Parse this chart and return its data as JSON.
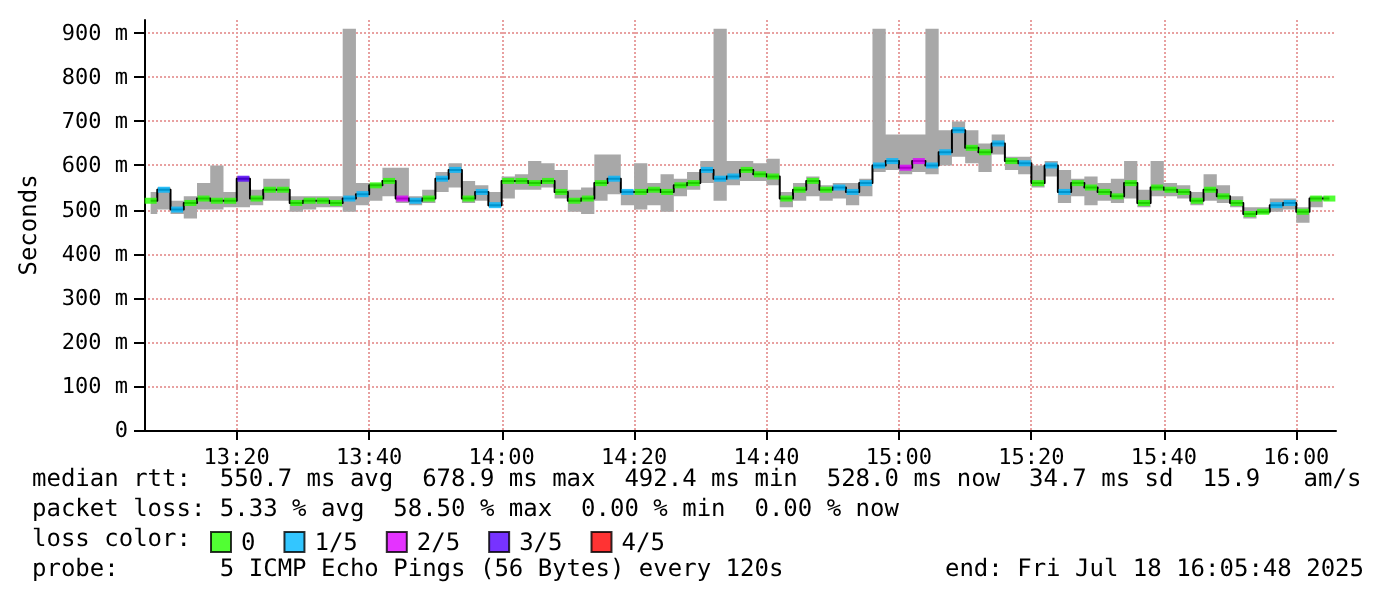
{
  "chart_data": {
    "type": "step",
    "ylabel": "Seconds",
    "x": [
      13.1167,
      13.15,
      13.1833,
      13.2167,
      13.25,
      13.2833,
      13.3167,
      13.35,
      13.3833,
      13.4167,
      13.45,
      13.4833,
      13.5167,
      13.55,
      13.5833,
      13.6167,
      13.65,
      13.6833,
      13.7167,
      13.75,
      13.7833,
      13.8167,
      13.85,
      13.8833,
      13.9167,
      13.95,
      13.9833,
      14.0167,
      14.05,
      14.0833,
      14.1167,
      14.15,
      14.1833,
      14.2167,
      14.25,
      14.2833,
      14.3167,
      14.35,
      14.3833,
      14.4167,
      14.45,
      14.4833,
      14.5167,
      14.55,
      14.5833,
      14.6167,
      14.65,
      14.6833,
      14.7167,
      14.75,
      14.7833,
      14.8167,
      14.85,
      14.8833,
      14.9167,
      14.95,
      14.9833,
      15.0167,
      15.05,
      15.0833,
      15.1167,
      15.15,
      15.1833,
      15.2167,
      15.25,
      15.2833,
      15.3167,
      15.35,
      15.3833,
      15.4167,
      15.45,
      15.4833,
      15.5167,
      15.55,
      15.5833,
      15.6167,
      15.65,
      15.6833,
      15.7167,
      15.75,
      15.7833,
      15.8167,
      15.85,
      15.8833,
      15.9167,
      15.95,
      15.9833,
      16.0167,
      16.05,
      16.0833
    ],
    "series": [
      {
        "color": "#000000",
        "marker": "none",
        "values": [
          520,
          545,
          500,
          515,
          525,
          520,
          520,
          570,
          525,
          545,
          545,
          515,
          520,
          520,
          515,
          525,
          535,
          555,
          565,
          525,
          520,
          525,
          570,
          590,
          525,
          540,
          510,
          565,
          565,
          560,
          565,
          540,
          520,
          525,
          560,
          570,
          540,
          540,
          545,
          540,
          555,
          560,
          590,
          570,
          575,
          590,
          580,
          575,
          525,
          545,
          565,
          545,
          550,
          540,
          560,
          600,
          610,
          595,
          610,
          600,
          630,
          680,
          640,
          630,
          650,
          610,
          605,
          560,
          600,
          540,
          560,
          550,
          540,
          530,
          560,
          515,
          550,
          545,
          540,
          520,
          545,
          530,
          515,
          490,
          495,
          510,
          515,
          495,
          525,
          525
        ],
        "lower": [
          490,
          500,
          490,
          480,
          500,
          500,
          505,
          505,
          510,
          520,
          520,
          495,
          500,
          505,
          505,
          495,
          510,
          520,
          530,
          515,
          510,
          515,
          540,
          550,
          515,
          520,
          505,
          525,
          545,
          545,
          550,
          525,
          495,
          490,
          520,
          535,
          510,
          500,
          510,
          495,
          530,
          545,
          560,
          520,
          555,
          565,
          565,
          555,
          505,
          520,
          530,
          520,
          525,
          510,
          530,
          585,
          590,
          580,
          585,
          580,
          600,
          620,
          605,
          585,
          625,
          590,
          580,
          550,
          575,
          515,
          530,
          510,
          520,
          515,
          525,
          505,
          530,
          530,
          525,
          510,
          520,
          515,
          505,
          480,
          490,
          495,
          500,
          470,
          505,
          520
        ],
        "upper": [
          540,
          550,
          520,
          530,
          560,
          600,
          540,
          575,
          545,
          570,
          570,
          530,
          530,
          530,
          530,
          910,
          560,
          560,
          595,
          595,
          530,
          545,
          585,
          605,
          565,
          555,
          540,
          575,
          580,
          610,
          605,
          590,
          545,
          550,
          625,
          625,
          545,
          605,
          560,
          580,
          570,
          585,
          610,
          910,
          610,
          610,
          605,
          615,
          540,
          560,
          575,
          555,
          560,
          560,
          570,
          910,
          670,
          670,
          670,
          910,
          680,
          700,
          680,
          650,
          670,
          620,
          620,
          600,
          610,
          590,
          570,
          575,
          560,
          570,
          610,
          545,
          610,
          560,
          555,
          540,
          580,
          555,
          530,
          505,
          505,
          525,
          525,
          505,
          530,
          530
        ]
      },
      {
        "type": "scatter",
        "name": "0",
        "color": "#26ff00",
        "values": [
          520,
          null,
          null,
          515,
          525,
          520,
          520,
          null,
          525,
          545,
          545,
          515,
          520,
          520,
          515,
          null,
          null,
          555,
          565,
          null,
          null,
          525,
          null,
          null,
          525,
          null,
          null,
          565,
          565,
          560,
          565,
          540,
          520,
          525,
          560,
          null,
          null,
          540,
          545,
          540,
          555,
          560,
          null,
          null,
          null,
          590,
          580,
          575,
          525,
          545,
          565,
          545,
          null,
          null,
          null,
          null,
          null,
          null,
          null,
          null,
          null,
          null,
          640,
          630,
          null,
          610,
          null,
          560,
          null,
          null,
          560,
          550,
          540,
          530,
          560,
          515,
          550,
          545,
          540,
          520,
          545,
          530,
          515,
          490,
          495,
          null,
          null,
          495,
          525,
          525
        ]
      },
      {
        "type": "scatter",
        "name": "1/5",
        "color": "#00b8ff",
        "values": [
          null,
          545,
          500,
          null,
          null,
          null,
          null,
          null,
          null,
          null,
          null,
          null,
          null,
          null,
          null,
          525,
          535,
          null,
          null,
          null,
          520,
          null,
          570,
          590,
          null,
          540,
          510,
          null,
          null,
          null,
          null,
          null,
          null,
          null,
          null,
          570,
          540,
          null,
          null,
          null,
          null,
          null,
          590,
          570,
          575,
          null,
          null,
          null,
          null,
          null,
          null,
          null,
          550,
          540,
          560,
          600,
          610,
          null,
          null,
          600,
          630,
          680,
          null,
          null,
          650,
          null,
          605,
          null,
          600,
          540,
          null,
          null,
          null,
          null,
          null,
          null,
          null,
          null,
          null,
          null,
          null,
          null,
          null,
          null,
          null,
          510,
          515,
          null,
          null,
          null
        ]
      },
      {
        "type": "scatter",
        "name": "2/5",
        "color": "#dd00ff",
        "values": [
          null,
          null,
          null,
          null,
          null,
          null,
          null,
          null,
          null,
          null,
          null,
          null,
          null,
          null,
          null,
          null,
          null,
          null,
          null,
          525,
          null,
          null,
          null,
          null,
          null,
          null,
          null,
          null,
          null,
          null,
          null,
          null,
          null,
          null,
          null,
          null,
          null,
          null,
          null,
          null,
          null,
          null,
          null,
          null,
          null,
          null,
          null,
          null,
          null,
          null,
          null,
          null,
          null,
          null,
          null,
          null,
          null,
          595,
          610,
          null,
          null,
          null,
          null,
          null,
          null,
          null,
          null,
          null,
          null,
          null,
          null,
          null,
          null,
          null,
          null,
          null,
          null,
          null,
          null,
          null,
          null,
          null,
          null,
          null,
          null,
          null,
          null,
          null,
          null,
          null
        ]
      },
      {
        "type": "scatter",
        "name": "3/5",
        "color": "#5500ff",
        "values": [
          null,
          null,
          null,
          null,
          null,
          null,
          null,
          570,
          null,
          null,
          null,
          null,
          null,
          null,
          null,
          null,
          null,
          null,
          null,
          null,
          null,
          null,
          null,
          null,
          null,
          null,
          null,
          null,
          null,
          null,
          null,
          null,
          null,
          null,
          null,
          null,
          null,
          null,
          null,
          null,
          null,
          null,
          null,
          null,
          null,
          null,
          null,
          null,
          null,
          null,
          null,
          null,
          null,
          null,
          null,
          null,
          null,
          null,
          null,
          null,
          null,
          null,
          null,
          null,
          null,
          null,
          null,
          null,
          null,
          null,
          null,
          null,
          null,
          null,
          null,
          null,
          null,
          null,
          null,
          null,
          null,
          null,
          null,
          null,
          null,
          null,
          null,
          null,
          null,
          null
        ]
      },
      {
        "type": "scatter",
        "name": "4/5",
        "color": "#ff0000",
        "values": [
          null,
          null,
          null,
          null,
          null,
          null,
          null,
          null,
          null,
          null,
          null,
          null,
          null,
          null,
          null,
          null,
          null,
          null,
          null,
          null,
          null,
          null,
          null,
          null,
          null,
          null,
          null,
          null,
          null,
          null,
          null,
          null,
          null,
          null,
          null,
          null,
          null,
          null,
          null,
          null,
          null,
          null,
          null,
          null,
          null,
          null,
          null,
          null,
          null,
          null,
          null,
          null,
          null,
          null,
          null,
          null,
          null,
          null,
          null,
          null,
          null,
          null,
          null,
          null,
          null,
          null,
          null,
          null,
          null,
          null,
          null,
          null,
          null,
          null,
          null,
          null,
          null,
          null,
          null,
          null,
          null,
          null,
          null,
          null,
          null,
          null,
          null,
          null,
          null,
          null
        ]
      }
    ],
    "marker": "square",
    "xlim": [
      13.1,
      16.1
    ],
    "xticks": [
      {
        "value": 13.3333,
        "label": "13:20"
      },
      {
        "value": 13.6667,
        "label": "13:40"
      },
      {
        "value": 14,
        "label": "14:00"
      },
      {
        "value": 14.3333,
        "label": "14:20"
      },
      {
        "value": 14.6667,
        "label": "14:40"
      },
      {
        "value": 15,
        "label": "15:00"
      },
      {
        "value": 15.3333,
        "label": "15:20"
      },
      {
        "value": 15.6667,
        "label": "15:40"
      },
      {
        "value": 16,
        "label": "16:00"
      }
    ],
    "ylim": [
      0,
      930
    ],
    "yticks": [
      {
        "value": 0,
        "label": "0"
      },
      {
        "value": 100,
        "label": "100 m"
      },
      {
        "value": 200,
        "label": "200 m"
      },
      {
        "value": 300,
        "label": "300 m"
      },
      {
        "value": 400,
        "label": "400 m"
      },
      {
        "value": 500,
        "label": "500 m"
      },
      {
        "value": 600,
        "label": "600 m"
      },
      {
        "value": 700,
        "label": "700 m"
      },
      {
        "value": 800,
        "label": "800 m"
      },
      {
        "value": 900,
        "label": "900 m"
      }
    ],
    "grid": true,
    "legend": "bottom",
    "legend_title": "loss color:",
    "annotations": [
      "median rtt:  550.7 ms avg  678.9 ms max  492.4 ms min  528.0 ms now  34.7 ms sd  15.9   am/s",
      "packet loss: 5.33 % avg  58.50 % max  0.00 % min  0.00 % now",
      "probe:       5 ICMP Echo Pings (56 Bytes) every 120s",
      "end: Fri Jul 18 16:05:48 2025"
    ]
  }
}
